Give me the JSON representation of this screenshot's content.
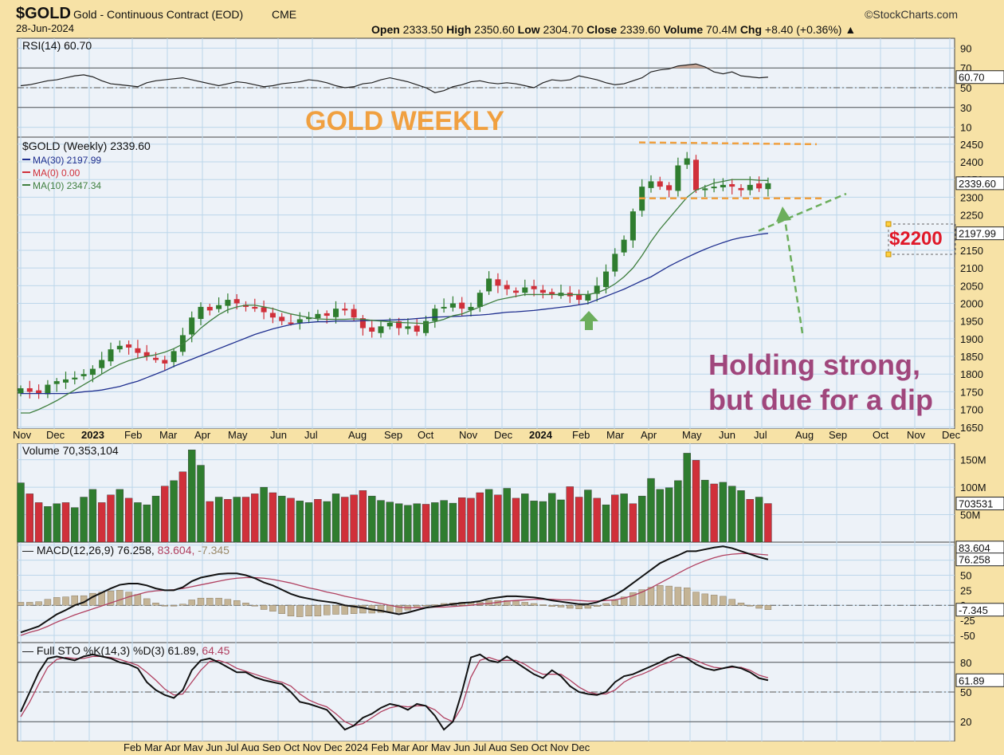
{
  "header": {
    "symbol": "$GOLD",
    "name": "Gold - Continuous Contract (EOD)",
    "exchange": "CME",
    "date": "28-Jun-2024",
    "source": "©StockCharts.com",
    "open_label": "Open",
    "open": "2333.50",
    "high_label": "High",
    "high": "2350.60",
    "low_label": "Low",
    "low": "2304.70",
    "close_label": "Close",
    "close": "2339.60",
    "volume_label": "Volume",
    "volume": "70.4M",
    "chg_label": "Chg",
    "chg": "+8.40 (+0.36%)",
    "up_arrow": "▲"
  },
  "annotations": {
    "title": "GOLD WEEKLY",
    "support_price": "$2200",
    "comment_line1": "Holding strong,",
    "comment_line2": "but due for a dip"
  },
  "colors": {
    "background": "#f7e2a6",
    "panel": "#edf2f8",
    "grid": "#bcd6ea",
    "up": "#2f7d2f",
    "down": "#d0303a",
    "ma30": "#1f2f8f",
    "ma10": "#3f7f3f",
    "annotation_orange": "#f0a040",
    "annotation_green": "#6cae5c",
    "annotation_purple": "#a0467c",
    "macd_hist": "#c4b496"
  },
  "chart_data": [
    {
      "type": "line",
      "title": "RSI(14) 60.70",
      "series": [
        {
          "name": "RSI(14)",
          "values": [
            52,
            53,
            55,
            57,
            58,
            60,
            62,
            63,
            61,
            57,
            54,
            53,
            52,
            51,
            55,
            57,
            58,
            59,
            60,
            58,
            56,
            54,
            52,
            54,
            56,
            55,
            53,
            51,
            52,
            54,
            55,
            56,
            58,
            57,
            55,
            52,
            50,
            51,
            54,
            55,
            58,
            60,
            58,
            56,
            53,
            50,
            45,
            47,
            51,
            53,
            56,
            57,
            55,
            54,
            55,
            54,
            52,
            50,
            55,
            58,
            57,
            58,
            62,
            60,
            58,
            55,
            53,
            54,
            57,
            60,
            66,
            68,
            69,
            72,
            73,
            74,
            71,
            66,
            64,
            66,
            62,
            61,
            60,
            60.7
          ]
        }
      ],
      "last_label": "60.70",
      "ylim": [
        0,
        100
      ],
      "ticks": [
        90,
        70,
        50,
        30,
        10
      ],
      "levels": [
        70,
        50,
        30
      ]
    },
    {
      "type": "candlestick",
      "title": "$GOLD (Weekly) 2339.60",
      "legend": [
        "MA(30) 2197.99",
        "MA(0) 0.00",
        "MA(10) 2347.34"
      ],
      "ylim": [
        1645,
        2470
      ],
      "ticks": [
        2450,
        2400,
        2350,
        2300,
        2250,
        2200,
        2150,
        2100,
        2050,
        2000,
        1950,
        1900,
        1850,
        1800,
        1750,
        1700,
        1650
      ],
      "last_price_label": "2339.60",
      "ma30_label": "2197.99",
      "x_ticks": [
        "Nov",
        "Dec",
        "2023",
        "Feb",
        "Mar",
        "Apr",
        "May",
        "Jun",
        "Jul",
        "Aug",
        "Sep",
        "Oct",
        "Nov",
        "Dec",
        "2024",
        "Feb",
        "Mar",
        "Apr",
        "May",
        "Jun",
        "Jul",
        "Aug",
        "Sep",
        "Oct",
        "Nov",
        "Dec"
      ],
      "bold_ticks": [
        "2023",
        "2024"
      ],
      "closes": [
        1760,
        1750,
        1745,
        1770,
        1780,
        1785,
        1790,
        1800,
        1815,
        1840,
        1870,
        1880,
        1875,
        1860,
        1850,
        1840,
        1830,
        1865,
        1910,
        1960,
        1990,
        1980,
        1995,
        2010,
        2000,
        1990,
        1985,
        1975,
        1960,
        1950,
        1945,
        1955,
        1960,
        1970,
        1965,
        1985,
        1980,
        1960,
        1930,
        1920,
        1935,
        1945,
        1930,
        1935,
        1920,
        1950,
        1985,
        1990,
        2000,
        1985,
        1990,
        2030,
        2070,
        2050,
        2040,
        2030,
        2045,
        2040,
        2030,
        2025,
        2030,
        2020,
        2010,
        2025,
        2050,
        2090,
        2140,
        2180,
        2260,
        2330,
        2345,
        2330,
        2320,
        2390,
        2410,
        2320,
        2325,
        2330,
        2335,
        2330,
        2320,
        2335,
        2325,
        2339.6
      ],
      "ma30_values": [
        1745,
        1745,
        1745,
        1745,
        1745,
        1745,
        1747,
        1750,
        1752,
        1755,
        1760,
        1765,
        1773,
        1780,
        1790,
        1800,
        1810,
        1822,
        1832,
        1842,
        1852,
        1862,
        1872,
        1882,
        1892,
        1902,
        1912,
        1920,
        1928,
        1934,
        1940,
        1944,
        1946,
        1948,
        1948,
        1950,
        1950,
        1950,
        1951,
        1952,
        1952,
        1953,
        1954,
        1955,
        1957,
        1959,
        1961,
        1962,
        1963,
        1964,
        1966,
        1967,
        1969,
        1972,
        1975,
        1976,
        1978,
        1980,
        1983,
        1986,
        1989,
        1992,
        1996,
        2000,
        2010,
        2020,
        2030,
        2040,
        2052,
        2064,
        2075,
        2090,
        2105,
        2118,
        2130,
        2142,
        2153,
        2163,
        2172,
        2180,
        2186,
        2190,
        2195,
        2197.99
      ],
      "ma10_values": [
        1690,
        1690,
        1700,
        1712,
        1725,
        1740,
        1755,
        1770,
        1785,
        1800,
        1815,
        1828,
        1838,
        1845,
        1850,
        1855,
        1862,
        1872,
        1885,
        1905,
        1930,
        1950,
        1968,
        1982,
        1990,
        1995,
        1995,
        1990,
        1985,
        1977,
        1970,
        1965,
        1960,
        1956,
        1955,
        1955,
        1955,
        1956,
        1955,
        1952,
        1950,
        1948,
        1946,
        1945,
        1944,
        1943,
        1948,
        1955,
        1965,
        1970,
        1980,
        1990,
        2000,
        2010,
        2015,
        2020,
        2025,
        2025,
        2025,
        2025,
        2025,
        2025,
        2025,
        2025,
        2030,
        2040,
        2055,
        2075,
        2100,
        2135,
        2175,
        2210,
        2240,
        2270,
        2300,
        2320,
        2330,
        2340,
        2345,
        2350,
        2350,
        2350,
        2348,
        2347.34
      ]
    },
    {
      "type": "bar",
      "title": "Volume 70,353,104",
      "values": [
        108,
        88,
        72,
        65,
        70,
        72,
        63,
        82,
        96,
        72,
        86,
        96,
        80,
        72,
        68,
        84,
        102,
        112,
        128,
        168,
        140,
        74,
        82,
        78,
        82,
        82,
        88,
        100,
        90,
        84,
        80,
        75,
        72,
        78,
        74,
        88,
        82,
        86,
        94,
        84,
        76,
        73,
        70,
        67,
        70,
        69,
        72,
        76,
        71,
        81,
        80,
        90,
        96,
        86,
        98,
        80,
        88,
        75,
        74,
        89,
        77,
        101,
        82,
        95,
        80,
        68,
        86,
        88,
        70,
        84,
        116,
        96,
        99,
        112,
        162,
        149,
        113,
        106,
        109,
        102,
        94,
        78,
        82,
        70.35
      ],
      "down_weeks": [
        1,
        2,
        5,
        9,
        10,
        12,
        16,
        18,
        21,
        23,
        25,
        26,
        28,
        30,
        33,
        36,
        37,
        38,
        45,
        49,
        50,
        51,
        53,
        55,
        61,
        62,
        64,
        66,
        68,
        75,
        77,
        81,
        83
      ],
      "ticks": [
        150,
        100,
        50
      ],
      "ylim": [
        0,
        180
      ],
      "last_label": "703531"
    },
    {
      "type": "line",
      "title": "MACD(12,26,9)",
      "title_values": [
        "76.258",
        "83.604",
        "-7.345"
      ],
      "series": [
        {
          "name": "MACD",
          "values": [
            -45,
            -40,
            -35,
            -25,
            -15,
            -8,
            0,
            5,
            14,
            21,
            28,
            34,
            36,
            36,
            33,
            28,
            25,
            25,
            30,
            40,
            46,
            49,
            52,
            53,
            53,
            50,
            45,
            38,
            33,
            26,
            19,
            14,
            11,
            8,
            6,
            4,
            0,
            -2,
            -4,
            -7,
            -9,
            -12,
            -15,
            -12,
            -8,
            -4,
            -2,
            0,
            2,
            4,
            5,
            7,
            11,
            13,
            15,
            15,
            14,
            13,
            11,
            8,
            6,
            4,
            2,
            2,
            5,
            11,
            17,
            26,
            37,
            48,
            59,
            70,
            77,
            83,
            90,
            90,
            93,
            96,
            98,
            95,
            90,
            85,
            80,
            76.258
          ]
        },
        {
          "name": "Signal",
          "values": [
            -50,
            -45,
            -41,
            -35,
            -28,
            -22,
            -16,
            -11,
            -6,
            -1,
            4,
            9,
            14,
            18,
            22,
            24,
            25,
            26,
            28,
            31,
            34,
            37,
            40,
            43,
            45,
            46,
            46,
            45,
            43,
            40,
            37,
            33,
            29,
            26,
            22,
            19,
            15,
            12,
            9,
            6,
            3,
            0,
            -3,
            -4,
            -4,
            -4,
            -3,
            -3,
            -2,
            -1,
            0,
            2,
            3,
            5,
            7,
            8,
            9,
            10,
            10,
            10,
            9,
            9,
            8,
            7,
            7,
            8,
            9,
            12,
            16,
            22,
            29,
            37,
            45,
            53,
            61,
            68,
            74,
            79,
            83,
            85,
            86,
            86,
            85,
            83.604
          ]
        }
      ],
      "histogram": [
        5,
        5,
        6,
        10,
        13,
        14,
        16,
        16,
        20,
        22,
        24,
        25,
        22,
        18,
        11,
        4,
        0,
        -1,
        2,
        9,
        12,
        12,
        12,
        10,
        8,
        4,
        -1,
        -7,
        -10,
        -14,
        -18,
        -19,
        -18,
        -18,
        -16,
        -15,
        -15,
        -14,
        -13,
        -13,
        -12,
        -12,
        -12,
        -8,
        -4,
        0,
        1,
        3,
        4,
        5,
        5,
        5,
        8,
        8,
        8,
        7,
        5,
        3,
        1,
        -2,
        -3,
        -5,
        -6,
        -5,
        -2,
        3,
        8,
        14,
        21,
        26,
        30,
        33,
        32,
        30,
        29,
        22,
        19,
        17,
        15,
        10,
        4,
        -1,
        -5,
        -7.345
      ],
      "ticks": [
        100,
        75,
        50,
        25,
        0,
        -25,
        -50
      ],
      "ylim": [
        -62,
        105
      ],
      "last_labels": [
        "83.604",
        "76.258",
        "-7.345"
      ]
    },
    {
      "type": "line",
      "title": "Full STO %K(14,3) %D(3) 61.89, 64.45",
      "title_main": "Full STO %K(14,3) %D(3) 61.89,",
      "title_d": "64.45",
      "series": [
        {
          "name": "%K",
          "values": [
            30,
            50,
            70,
            84,
            86,
            84,
            82,
            86,
            88,
            86,
            84,
            80,
            78,
            74,
            60,
            52,
            47,
            44,
            52,
            72,
            82,
            84,
            80,
            75,
            70,
            70,
            65,
            62,
            60,
            58,
            50,
            40,
            38,
            35,
            32,
            22,
            12,
            16,
            24,
            28,
            34,
            38,
            36,
            32,
            38,
            36,
            26,
            12,
            20,
            50,
            85,
            88,
            82,
            80,
            86,
            80,
            74,
            68,
            64,
            72,
            66,
            56,
            50,
            48,
            47,
            50,
            60,
            66,
            68,
            72,
            76,
            80,
            85,
            88,
            84,
            78,
            74,
            72,
            74,
            76,
            74,
            70,
            64,
            61.89
          ]
        },
        {
          "name": "%D",
          "values": [
            25,
            40,
            58,
            75,
            83,
            85,
            84,
            84,
            86,
            86,
            85,
            83,
            80,
            77,
            70,
            62,
            53,
            47,
            48,
            60,
            72,
            81,
            82,
            79,
            74,
            71,
            68,
            65,
            62,
            60,
            56,
            48,
            42,
            38,
            35,
            28,
            20,
            16,
            18,
            24,
            30,
            34,
            36,
            35,
            36,
            36,
            32,
            24,
            20,
            35,
            65,
            82,
            85,
            82,
            82,
            82,
            78,
            72,
            68,
            68,
            68,
            62,
            55,
            50,
            48,
            48,
            52,
            60,
            65,
            68,
            72,
            77,
            80,
            85,
            85,
            82,
            78,
            75,
            74,
            75,
            75,
            72,
            67,
            64.45
          ]
        }
      ],
      "ticks": [
        80,
        50,
        20
      ],
      "levels": [
        80,
        50,
        20
      ],
      "ylim": [
        0,
        100
      ],
      "last_label": "61.89",
      "x_ticks_partial": "Feb Mar Apr May Jun Jul Aug Sep Oct Nov Dec 2024 Feb Mar Apr May Jun Jul Aug Sep Oct Nov Dec"
    }
  ]
}
